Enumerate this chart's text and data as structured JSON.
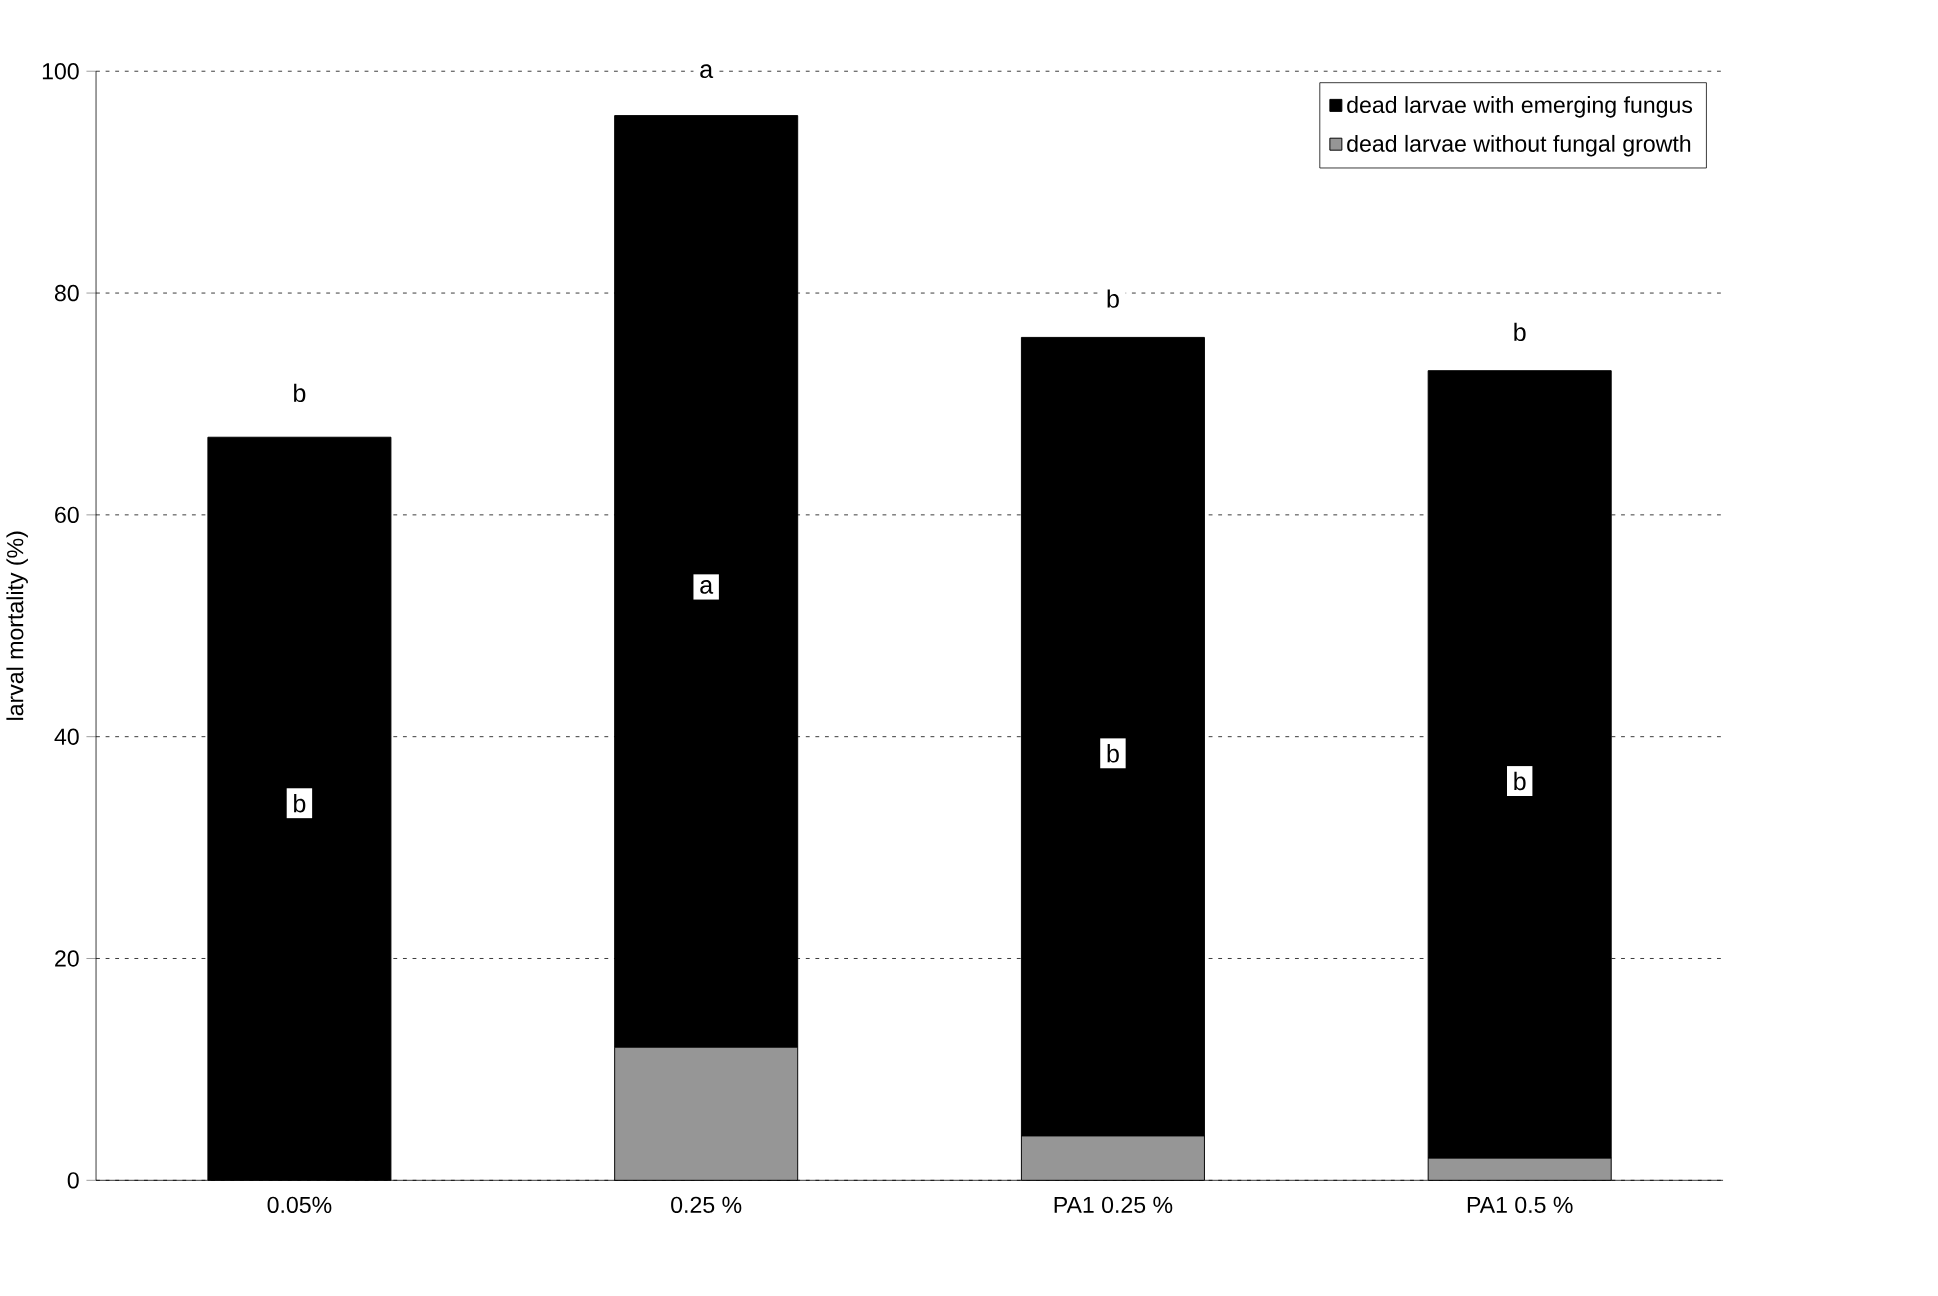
{
  "chart_data": {
    "type": "bar",
    "stacked": true,
    "ylabel": "larval mortality (%)",
    "categories": [
      "0.05%",
      "0.25 %",
      "PA1 0.25 %",
      "PA1 0.5 %"
    ],
    "series": [
      {
        "name": "dead larvae without fungal growth",
        "color": "#969696",
        "values": [
          0,
          12,
          4,
          2
        ]
      },
      {
        "name": "dead larvae with emerging fungus",
        "color": "#000000",
        "values": [
          67,
          84,
          72,
          71
        ]
      }
    ],
    "ylim": [
      0,
      100
    ],
    "yticks": [
      0,
      20,
      40,
      60,
      80,
      100
    ],
    "grid": "y",
    "legend": "top right",
    "annotations": [
      {
        "text": "b",
        "x": "0.05%",
        "y": 71
      },
      {
        "text": "a",
        "x": "0.25 %",
        "y": 100
      },
      {
        "text": "b",
        "x": "PA1 0.25 %",
        "y": 79.5
      },
      {
        "text": "b",
        "x": "PA1 0.5 %",
        "y": 76.5
      },
      {
        "text": "b",
        "x": "0.05%",
        "y": 34
      },
      {
        "text": "a",
        "x": "0.25 %",
        "y": 53.5
      },
      {
        "text": "b",
        "x": "PA1 0.25 %",
        "y": 38.5
      },
      {
        "text": "b",
        "x": "PA1 0.5 %",
        "y": 36
      }
    ]
  }
}
